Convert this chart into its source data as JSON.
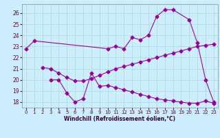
{
  "line1_x": [
    0,
    1,
    10,
    11,
    12,
    13,
    14,
    15,
    16,
    17,
    18,
    20,
    21,
    22,
    23
  ],
  "line1_y": [
    22.8,
    23.5,
    22.8,
    23.0,
    22.8,
    23.8,
    23.6,
    24.0,
    25.7,
    26.3,
    26.3,
    25.4,
    23.3,
    20.0,
    18.0
  ],
  "line2_x": [
    2,
    3,
    4,
    5,
    6,
    7,
    8,
    9,
    10,
    11,
    12,
    13,
    14,
    15,
    16,
    17,
    18,
    19,
    20,
    21,
    22,
    23
  ],
  "line2_y": [
    21.1,
    21.0,
    20.6,
    20.2,
    19.9,
    19.9,
    20.1,
    20.4,
    20.7,
    21.0,
    21.2,
    21.4,
    21.6,
    21.8,
    22.0,
    22.2,
    22.4,
    22.6,
    22.8,
    23.0,
    23.1,
    23.2
  ],
  "line3_x": [
    3,
    4,
    5,
    6,
    7,
    8,
    9,
    10,
    11,
    12,
    13,
    14,
    15,
    16,
    17,
    18,
    19,
    20,
    21,
    22,
    23
  ],
  "line3_y": [
    20.0,
    20.0,
    18.8,
    18.0,
    18.3,
    20.6,
    19.4,
    19.5,
    19.3,
    19.1,
    18.9,
    18.7,
    18.5,
    18.3,
    18.2,
    18.1,
    18.0,
    17.9,
    17.9,
    18.1,
    17.9
  ],
  "color": "#990099",
  "bg_color": "#cceeff",
  "grid_color": "#aadddd",
  "xlabel": "Windchill (Refroidissement éolien,°C)",
  "ylim": [
    17.5,
    26.8
  ],
  "xlim": [
    -0.5,
    23.5
  ],
  "yticks": [
    18,
    19,
    20,
    21,
    22,
    23,
    24,
    25,
    26
  ],
  "xticks": [
    0,
    1,
    2,
    3,
    4,
    5,
    6,
    7,
    8,
    9,
    10,
    11,
    12,
    13,
    14,
    15,
    16,
    17,
    18,
    19,
    20,
    21,
    22,
    23
  ]
}
